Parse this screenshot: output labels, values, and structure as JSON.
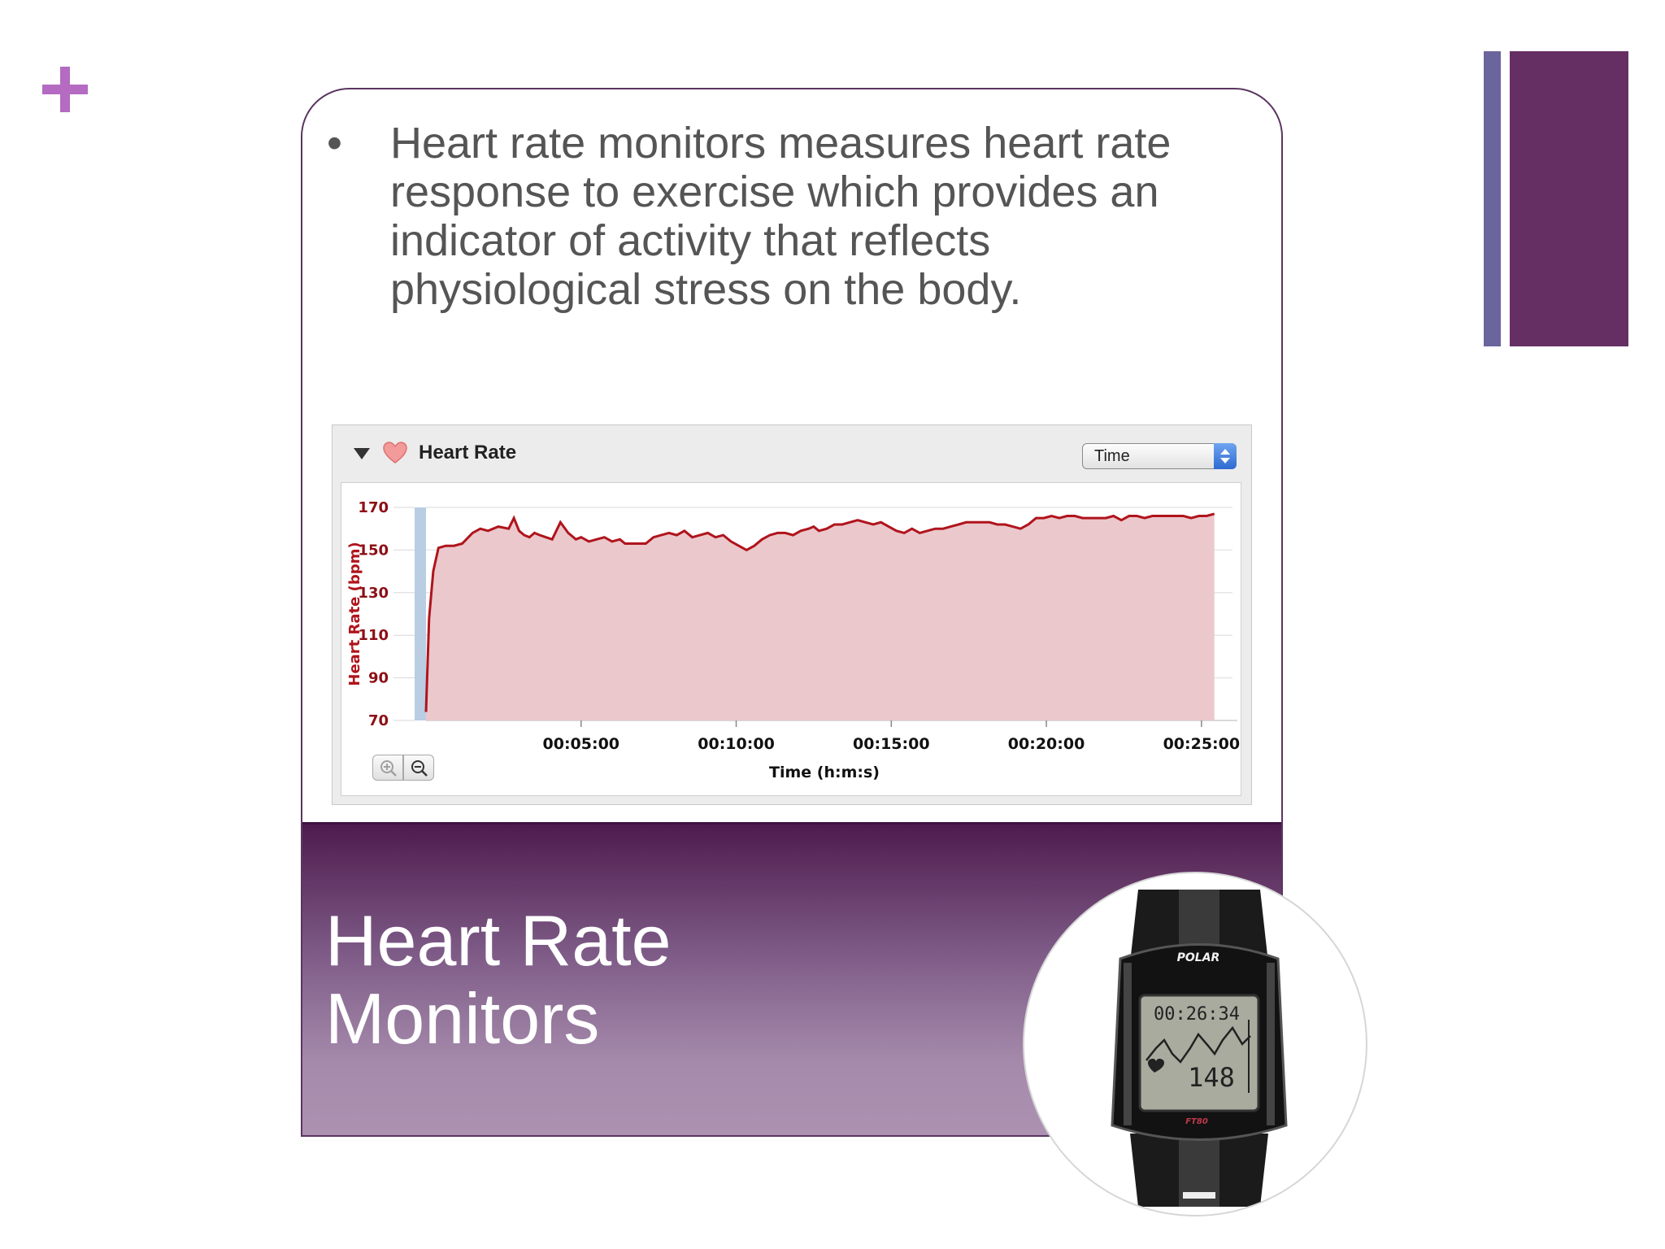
{
  "slide": {
    "bullet": "Heart rate monitors measures heart rate response to exercise which provides an indicator of activity that reflects physiological stress on the body.",
    "title_line1": "Heart Rate",
    "title_line2": "Monitors",
    "colors": {
      "accent": "#662f64",
      "accent_secondary": "#6a659c",
      "plus": "#b46bc1"
    }
  },
  "widget": {
    "title": "Heart Rate",
    "select_value": "Time",
    "icons": [
      "collapse-triangle-icon",
      "heart-icon",
      "zoom-in-icon",
      "zoom-out-icon"
    ]
  },
  "watch": {
    "brand": "POLAR",
    "time": "00:26:34",
    "bpm": "148",
    "model": "FT80"
  },
  "chart_data": {
    "type": "area",
    "title": "",
    "xlabel": "Time (h:m:s)",
    "ylabel": "Heart Rate (bpm)",
    "ylim": [
      70,
      170
    ],
    "xlim_seconds": [
      0,
      1560
    ],
    "yticks": [
      70,
      90,
      110,
      130,
      150,
      170
    ],
    "xtick_labels": [
      "00:05:00",
      "00:10:00",
      "00:15:00",
      "00:20:00",
      "00:25:00"
    ],
    "xtick_seconds": [
      300,
      600,
      900,
      1200,
      1500
    ],
    "grid": true,
    "series": [
      {
        "x": [
          0,
          6,
          14,
          24,
          38,
          54,
          70,
          90,
          105,
          120,
          140,
          160,
          170,
          180,
          190,
          200,
          210,
          220,
          232,
          244,
          260,
          275,
          290,
          300,
          315,
          330,
          345,
          360,
          375,
          385,
          395,
          410,
          425,
          440,
          455,
          470,
          485,
          500,
          515,
          530,
          545,
          560,
          575,
          590,
          605,
          620,
          635,
          650,
          665,
          680,
          695,
          710,
          725,
          740,
          750,
          760,
          775,
          790,
          805,
          820,
          835,
          850,
          865,
          880,
          895,
          910,
          925,
          940,
          955,
          970,
          985,
          1000,
          1015,
          1030,
          1045,
          1060,
          1075,
          1090,
          1105,
          1120,
          1135,
          1150,
          1165,
          1180,
          1195,
          1210,
          1225,
          1240,
          1255,
          1270,
          1285,
          1300,
          1315,
          1330,
          1345,
          1360,
          1375,
          1390,
          1405,
          1420,
          1435,
          1450,
          1465,
          1480,
          1495,
          1510,
          1525
        ],
        "y": [
          74,
          118,
          140,
          151,
          152,
          152,
          153,
          158,
          160,
          159,
          161,
          160,
          165,
          159,
          157,
          156,
          158,
          157,
          156,
          155,
          163,
          158,
          155,
          156,
          154,
          155,
          156,
          154,
          155,
          153,
          153,
          153,
          153,
          156,
          157,
          158,
          157,
          159,
          156,
          157,
          158,
          156,
          157,
          154,
          152,
          150,
          152,
          155,
          157,
          158,
          158,
          157,
          159,
          160,
          161,
          159,
          160,
          162,
          162,
          163,
          164,
          163,
          162,
          163,
          161,
          159,
          158,
          160,
          158,
          159,
          160,
          160,
          161,
          162,
          163,
          163,
          163,
          163,
          162,
          162,
          161,
          160,
          162,
          165,
          165,
          166,
          165,
          166,
          166,
          165,
          165,
          165,
          165,
          166,
          164,
          166,
          166,
          165,
          166,
          166,
          166,
          166,
          166,
          165,
          166,
          166,
          167
        ]
      }
    ]
  }
}
